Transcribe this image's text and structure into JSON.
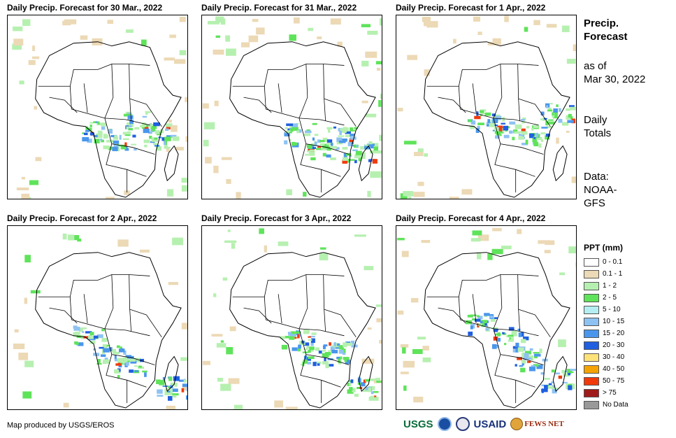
{
  "panels": [
    {
      "title": "Daily Precip. Forecast for 30 Mar., 2022"
    },
    {
      "title": "Daily Precip. Forecast for 31 Mar., 2022"
    },
    {
      "title": "Daily Precip. Forecast for 1 Apr., 2022"
    },
    {
      "title": "Daily Precip. Forecast for 2 Apr., 2022"
    },
    {
      "title": "Daily Precip. Forecast for 3 Apr., 2022"
    },
    {
      "title": "Daily Precip. Forecast for 4 Apr., 2022"
    }
  ],
  "sidebar": {
    "title_line1": "Precip.",
    "title_line2": "Forecast",
    "asof_line1": "as of",
    "asof_line2": "Mar 30, 2022",
    "totals_line1": "Daily",
    "totals_line2": "Totals",
    "data_line1": "Data:",
    "data_line2": "NOAA-",
    "data_line3": "GFS"
  },
  "legend": {
    "title": "PPT (mm)",
    "items": [
      {
        "label": "0 - 0.1",
        "color": "#ffffff"
      },
      {
        "label": "0.1 - 1",
        "color": "#ecd9b5"
      },
      {
        "label": "1 - 2",
        "color": "#b6f0b0"
      },
      {
        "label": "2 - 5",
        "color": "#5fe35a"
      },
      {
        "label": "5 - 10",
        "color": "#b4eef2"
      },
      {
        "label": "10 - 15",
        "color": "#8ec2f2"
      },
      {
        "label": "15 - 20",
        "color": "#4a96ec"
      },
      {
        "label": "20 - 30",
        "color": "#1f5fe0"
      },
      {
        "label": "30 - 40",
        "color": "#fde27a"
      },
      {
        "label": "40 - 50",
        "color": "#f5a300"
      },
      {
        "label": "50 - 75",
        "color": "#f03a0c"
      },
      {
        "label": "> 75",
        "color": "#a01a1a"
      },
      {
        "label": "No Data",
        "color": "#999999"
      }
    ]
  },
  "credit": "Map produced by USGS/EROS",
  "logos": {
    "usgs": "USGS",
    "usaid": "USAID",
    "fewsnet": "FEWS NET"
  }
}
